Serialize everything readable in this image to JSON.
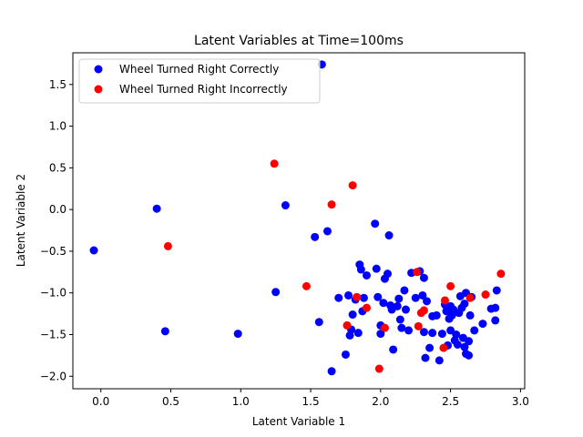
{
  "chart_data": {
    "type": "scatter",
    "title": "Latent Variables at Time=100ms",
    "xlabel": "Latent Variable 1",
    "ylabel": "Latent Variable 2",
    "xlim": [
      -0.2,
      3.03
    ],
    "ylim": [
      -2.15,
      1.88
    ],
    "xticks": [
      0.0,
      0.5,
      1.0,
      1.5,
      2.0,
      2.5,
      3.0
    ],
    "xtick_labels": [
      "0.0",
      "0.5",
      "1.0",
      "1.5",
      "2.0",
      "2.5",
      "3.0"
    ],
    "yticks": [
      1.5,
      1.0,
      0.5,
      0.0,
      -0.5,
      -1.0,
      -1.5,
      -2.0
    ],
    "ytick_labels": [
      "1.5",
      "1.0",
      "0.5",
      "0.0",
      "−0.5",
      "−1.0",
      "−1.5",
      "−2.0"
    ],
    "grid": false,
    "legend_position": "top-left",
    "series": [
      {
        "name": "Wheel Turned Right Correctly",
        "color": "#0000ff",
        "points": [
          [
            -0.05,
            -0.49
          ],
          [
            0.4,
            0.01
          ],
          [
            0.46,
            -1.46
          ],
          [
            0.98,
            -1.49
          ],
          [
            1.25,
            -0.99
          ],
          [
            1.32,
            0.05
          ],
          [
            1.53,
            -0.33
          ],
          [
            1.56,
            -1.35
          ],
          [
            1.58,
            1.74
          ],
          [
            1.62,
            -0.26
          ],
          [
            1.65,
            -1.94
          ],
          [
            1.7,
            -1.06
          ],
          [
            1.75,
            -1.74
          ],
          [
            1.77,
            -1.03
          ],
          [
            1.78,
            -1.51
          ],
          [
            1.79,
            -1.44
          ],
          [
            1.8,
            -1.26
          ],
          [
            1.82,
            -1.08
          ],
          [
            1.84,
            -1.48
          ],
          [
            1.85,
            -0.66
          ],
          [
            1.86,
            -0.72
          ],
          [
            1.87,
            -1.22
          ],
          [
            1.88,
            -1.06
          ],
          [
            1.9,
            -0.79
          ],
          [
            1.96,
            -0.17
          ],
          [
            1.97,
            -0.71
          ],
          [
            1.98,
            -1.05
          ],
          [
            2.0,
            -1.39
          ],
          [
            2.0,
            -1.49
          ],
          [
            2.02,
            -1.12
          ],
          [
            2.03,
            -0.83
          ],
          [
            2.05,
            -0.77
          ],
          [
            2.06,
            -0.31
          ],
          [
            2.07,
            -1.15
          ],
          [
            2.08,
            -1.2
          ],
          [
            2.09,
            -1.68
          ],
          [
            2.12,
            -1.16
          ],
          [
            2.13,
            -1.07
          ],
          [
            2.14,
            -1.32
          ],
          [
            2.15,
            -1.42
          ],
          [
            2.17,
            -0.97
          ],
          [
            2.18,
            -1.2
          ],
          [
            2.2,
            -1.45
          ],
          [
            2.22,
            -0.76
          ],
          [
            2.25,
            -1.06
          ],
          [
            2.28,
            -0.74
          ],
          [
            2.3,
            -1.03
          ],
          [
            2.31,
            -0.82
          ],
          [
            2.31,
            -1.47
          ],
          [
            2.32,
            -1.78
          ],
          [
            2.33,
            -1.1
          ],
          [
            2.35,
            -1.66
          ],
          [
            2.37,
            -1.28
          ],
          [
            2.37,
            -1.48
          ],
          [
            2.4,
            -1.27
          ],
          [
            2.42,
            -1.81
          ],
          [
            2.44,
            -1.49
          ],
          [
            2.46,
            -1.14
          ],
          [
            2.47,
            -1.22
          ],
          [
            2.48,
            -1.63
          ],
          [
            2.49,
            -1.31
          ],
          [
            2.5,
            -1.16
          ],
          [
            2.5,
            -1.45
          ],
          [
            2.51,
            -1.27
          ],
          [
            2.52,
            -1.2
          ],
          [
            2.53,
            -1.57
          ],
          [
            2.54,
            -1.5
          ],
          [
            2.55,
            -1.62
          ],
          [
            2.56,
            -1.24
          ],
          [
            2.57,
            -1.04
          ],
          [
            2.58,
            -1.18
          ],
          [
            2.59,
            -1.54
          ],
          [
            2.6,
            -1.13
          ],
          [
            2.6,
            -1.65
          ],
          [
            2.61,
            -1.0
          ],
          [
            2.61,
            -1.73
          ],
          [
            2.63,
            -1.75
          ],
          [
            2.63,
            -1.58
          ],
          [
            2.64,
            -1.27
          ],
          [
            2.65,
            -1.05
          ],
          [
            2.67,
            -1.45
          ],
          [
            2.73,
            -1.37
          ],
          [
            2.79,
            -1.19
          ],
          [
            2.82,
            -1.33
          ],
          [
            2.82,
            -1.18
          ],
          [
            2.83,
            -0.97
          ]
        ]
      },
      {
        "name": "Wheel Turned Right Incorrectly",
        "color": "#ff0000",
        "points": [
          [
            0.48,
            -0.44
          ],
          [
            1.24,
            0.55
          ],
          [
            1.47,
            -0.92
          ],
          [
            1.65,
            0.06
          ],
          [
            1.76,
            -1.39
          ],
          [
            1.8,
            0.29
          ],
          [
            1.83,
            -1.05
          ],
          [
            1.9,
            -1.18
          ],
          [
            1.99,
            -1.91
          ],
          [
            2.03,
            -1.42
          ],
          [
            2.26,
            -0.75
          ],
          [
            2.27,
            -1.4
          ],
          [
            2.29,
            -1.24
          ],
          [
            2.31,
            -1.21
          ],
          [
            2.45,
            -1.66
          ],
          [
            2.46,
            -1.09
          ],
          [
            2.5,
            -0.92
          ],
          [
            2.64,
            -1.06
          ],
          [
            2.75,
            -1.02
          ],
          [
            2.86,
            -0.77
          ]
        ]
      }
    ]
  }
}
